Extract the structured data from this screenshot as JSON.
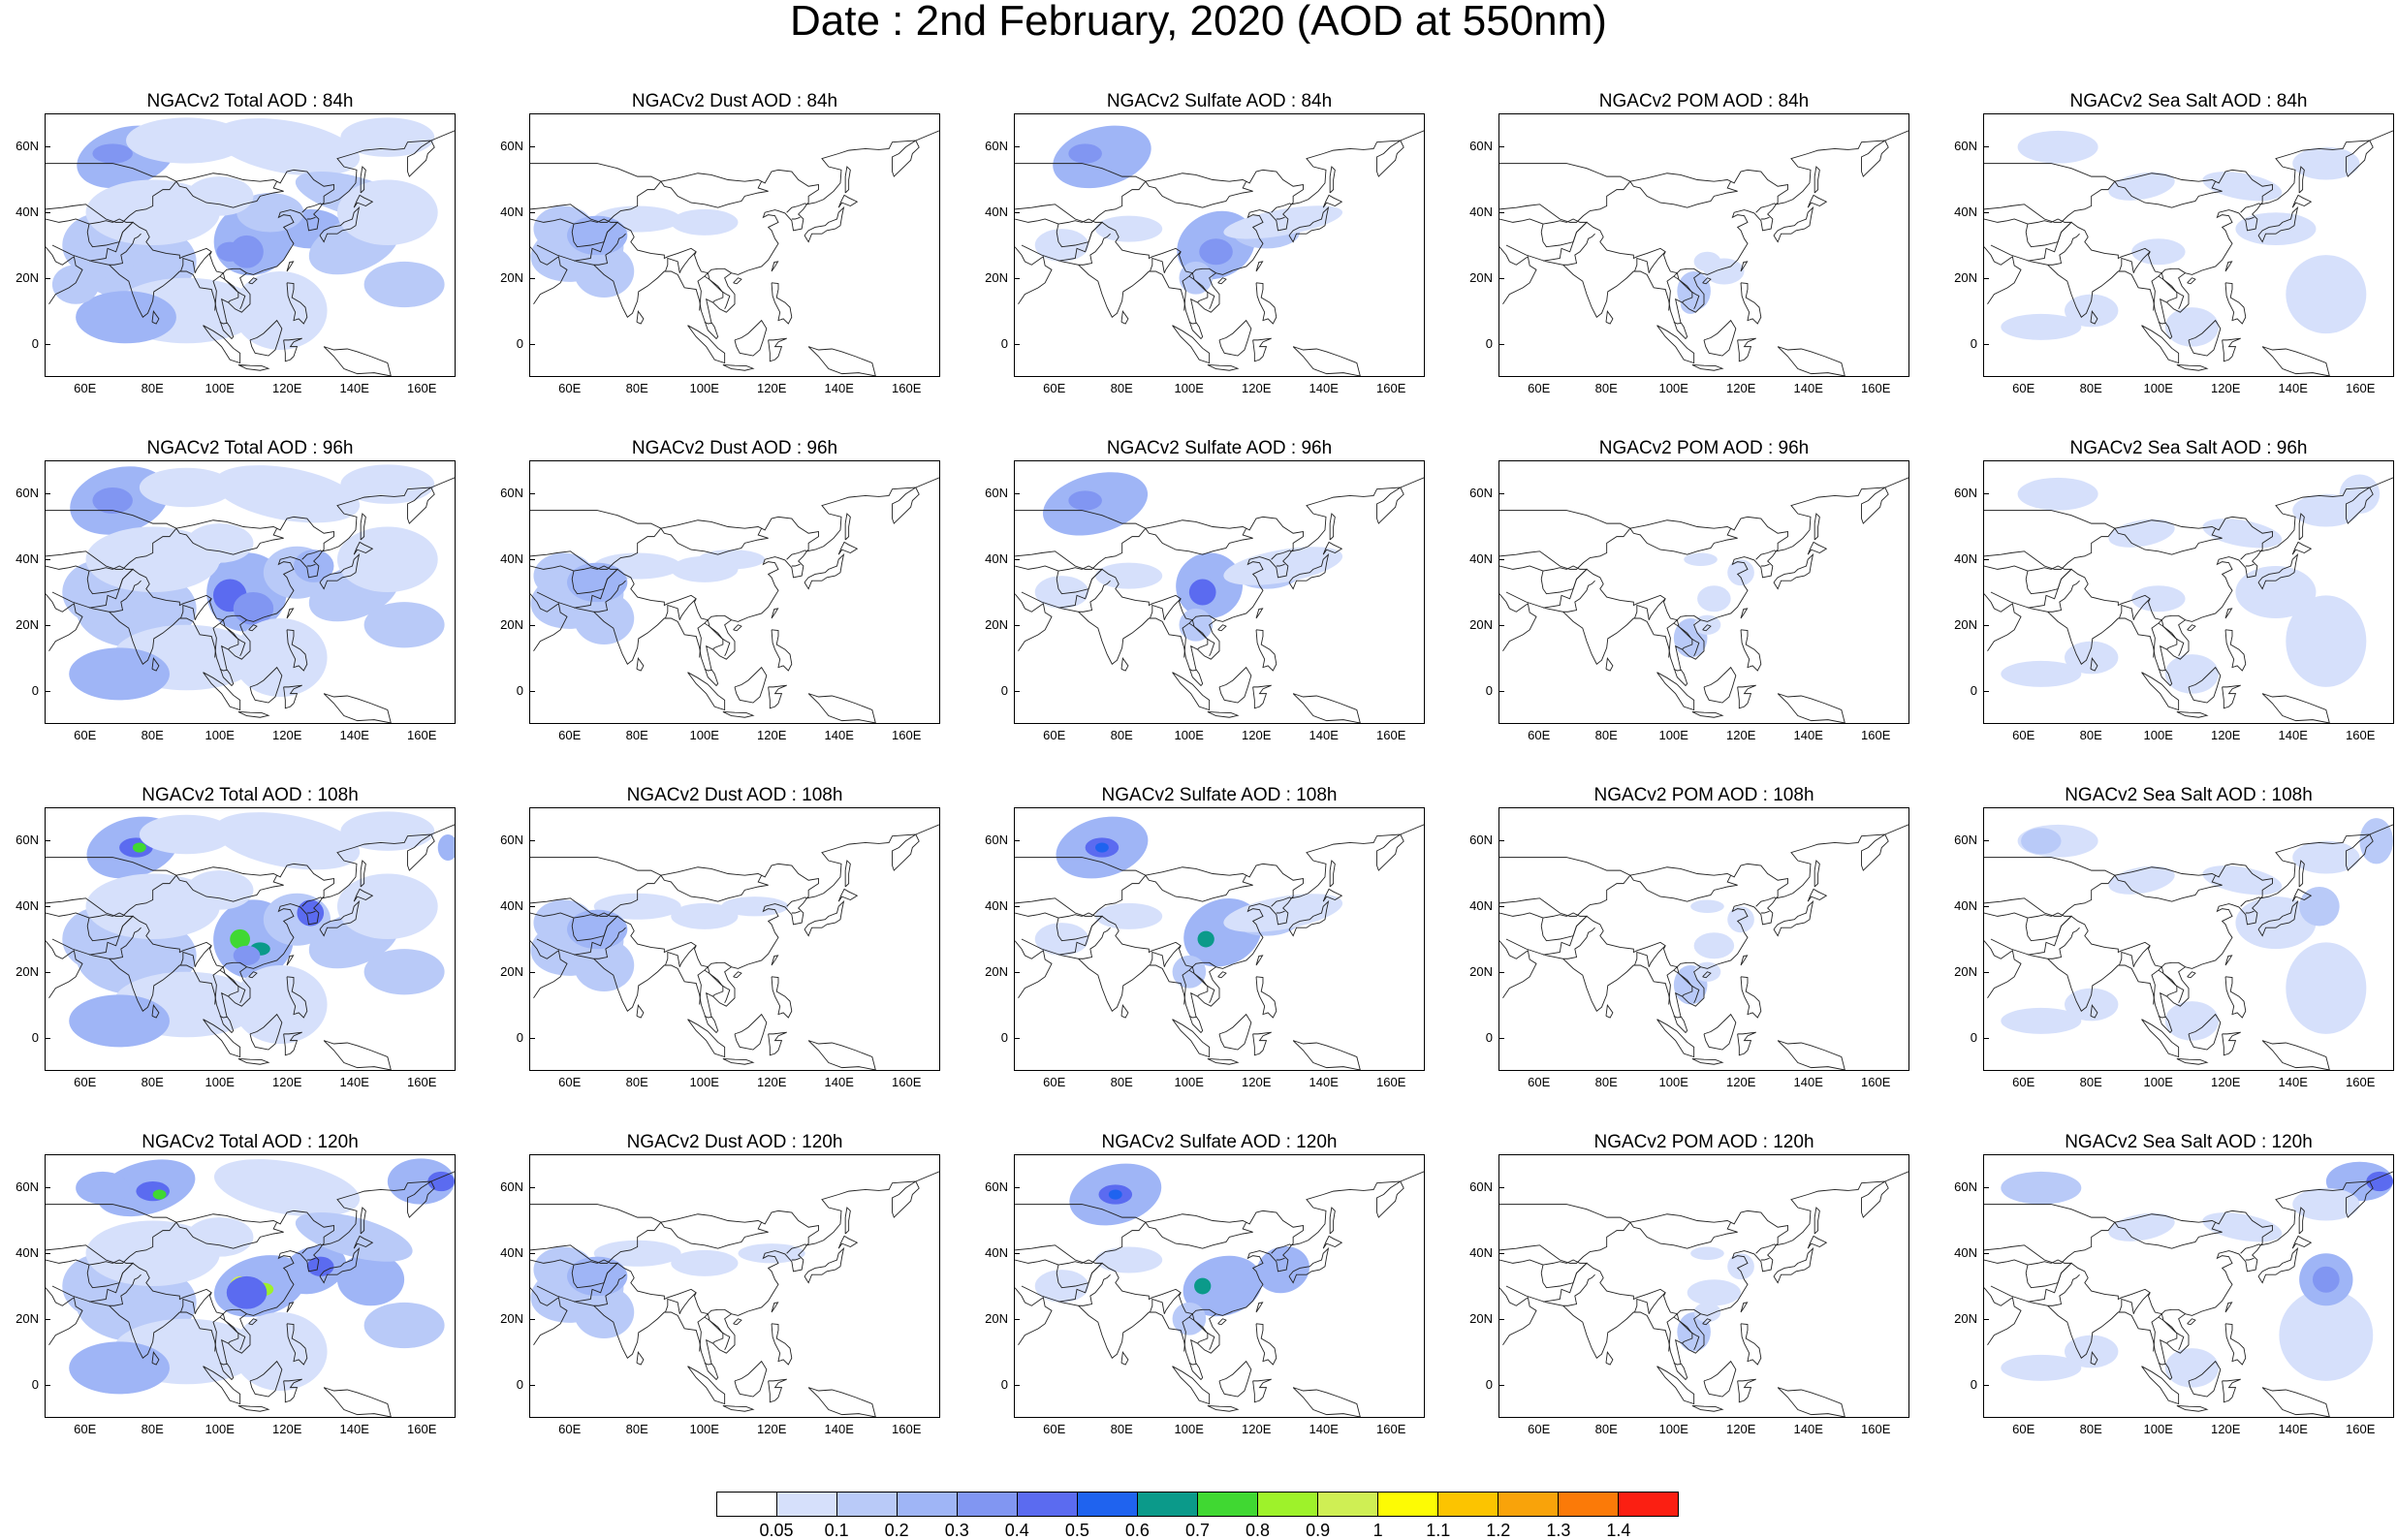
{
  "title": "Date : 2nd February, 2020 (AOD at 550nm)",
  "x_ticks": [
    "60E",
    "80E",
    "100E",
    "120E",
    "140E",
    "160E"
  ],
  "y_ticks": [
    "60N",
    "40N",
    "20N",
    "0"
  ],
  "lon_range": [
    48,
    170
  ],
  "lat_range": [
    -10,
    70
  ],
  "colorbar": {
    "labels": [
      "0.05",
      "0.1",
      "0.2",
      "0.3",
      "0.4",
      "0.5",
      "0.6",
      "0.7",
      "0.8",
      "0.9",
      "1",
      "1.1",
      "1.2",
      "1.3",
      "1.4"
    ],
    "colors": [
      "#ffffff",
      "#d6e0fb",
      "#b9caf8",
      "#9fb5f6",
      "#8196f2",
      "#5b6bf0",
      "#1f63ef",
      "#0b9a8a",
      "#40d832",
      "#9ef22a",
      "#cfef54",
      "#fdfb04",
      "#fcc400",
      "#f9a30a",
      "#fb7a08",
      "#fb1f12"
    ]
  },
  "panels": [
    {
      "title": "NGACv2 Total AOD : 84h"
    },
    {
      "title": "NGACv2 Dust AOD : 84h"
    },
    {
      "title": "NGACv2 Sulfate AOD : 84h"
    },
    {
      "title": "NGACv2 POM AOD : 84h"
    },
    {
      "title": "NGACv2 Sea Salt AOD : 84h"
    },
    {
      "title": "NGACv2 Total AOD : 96h"
    },
    {
      "title": "NGACv2 Dust AOD : 96h"
    },
    {
      "title": "NGACv2 Sulfate AOD : 96h"
    },
    {
      "title": "NGACv2 POM AOD : 96h"
    },
    {
      "title": "NGACv2 Sea Salt AOD : 96h"
    },
    {
      "title": "NGACv2 Total AOD : 108h"
    },
    {
      "title": "NGACv2 Dust AOD : 108h"
    },
    {
      "title": "NGACv2 Sulfate AOD : 108h"
    },
    {
      "title": "NGACv2 POM AOD : 108h"
    },
    {
      "title": "NGACv2 Sea Salt AOD : 108h"
    },
    {
      "title": "NGACv2 Total AOD : 120h"
    },
    {
      "title": "NGACv2 Dust AOD : 120h"
    },
    {
      "title": "NGACv2 Sulfate AOD : 120h"
    },
    {
      "title": "NGACv2 POM AOD : 120h"
    },
    {
      "title": "NGACv2 Sea Salt  AOD : 120h"
    }
  ]
}
